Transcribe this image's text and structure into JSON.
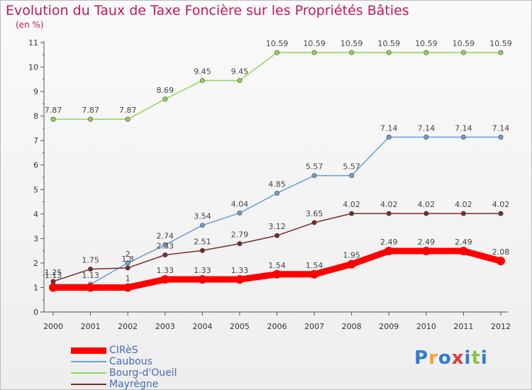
{
  "header": {
    "title": "Evolution du Taux de Taxe Foncière sur les Propriétés Bâties",
    "unit": "(en %)"
  },
  "logo": {
    "text": "Proxiti",
    "colors": [
      "#2e7bd6",
      "#f2a324",
      "#2e7bd6",
      "#e53935",
      "#2e7bd6",
      "#8bc34a",
      "#2e7bd6"
    ]
  },
  "chart_data": {
    "type": "line",
    "title": "Evolution du Taux de Taxe Foncière sur les Propriétés Bâties",
    "ylabel": "(en %)",
    "xlabel": "",
    "x": [
      "2000",
      "2001",
      "2002",
      "2003",
      "2004",
      "2005",
      "2006",
      "2007",
      "2008",
      "2009",
      "2010",
      "2011",
      "2012"
    ],
    "ylim": [
      0,
      11
    ],
    "yticks": [
      "0",
      "1",
      "2",
      "3",
      "4",
      "5",
      "6",
      "7",
      "8",
      "9",
      "10",
      "11"
    ],
    "grid": false,
    "legend_position": "bottom-left",
    "series": [
      {
        "name": "CIRèS",
        "color": "#ff0000",
        "values": [
          1,
          1,
          1,
          1.33,
          1.33,
          1.33,
          1.54,
          1.54,
          1.95,
          2.49,
          2.49,
          2.49,
          2.08
        ],
        "labels": [
          "",
          "",
          "1",
          "1.33",
          "1.33",
          "1.33",
          "1.54",
          "1.54",
          "1.95",
          "2.49",
          "2.49",
          "2.49",
          "2.08"
        ]
      },
      {
        "name": "Caubous",
        "color": "#6a9fd4",
        "values": [
          1.13,
          1.13,
          2,
          2.74,
          3.54,
          4.04,
          4.85,
          5.57,
          5.57,
          7.14,
          7.14,
          7.14,
          7.14
        ],
        "labels": [
          "1.13",
          "1.13",
          "2",
          "2.74",
          "3.54",
          "4.04",
          "4.85",
          "5.57",
          "5.57",
          "7.14",
          "7.14",
          "7.14",
          "7.14"
        ]
      },
      {
        "name": "Bourg-d'Oueil",
        "color": "#8fd45a",
        "values": [
          7.87,
          7.87,
          7.87,
          8.69,
          9.45,
          9.45,
          10.59,
          10.59,
          10.59,
          10.59,
          10.59,
          10.59,
          10.59
        ],
        "labels": [
          "7.87",
          "7.87",
          "7.87",
          "8.69",
          "9.45",
          "9.45",
          "10.59",
          "10.59",
          "10.59",
          "10.59",
          "10.59",
          "10.59",
          "10.59"
        ]
      },
      {
        "name": "Mayrègne",
        "color": "#7b2a2a",
        "values": [
          1.25,
          1.75,
          1.8,
          2.33,
          2.51,
          2.79,
          3.12,
          3.65,
          4.02,
          4.02,
          4.02,
          4.02,
          4.02
        ],
        "labels": [
          "1.25",
          "1.75",
          "1.8",
          "2.33",
          "2.51",
          "2.79",
          "3.12",
          "3.65",
          "4.02",
          "4.02",
          "4.02",
          "4.02",
          "4.02"
        ]
      }
    ]
  }
}
